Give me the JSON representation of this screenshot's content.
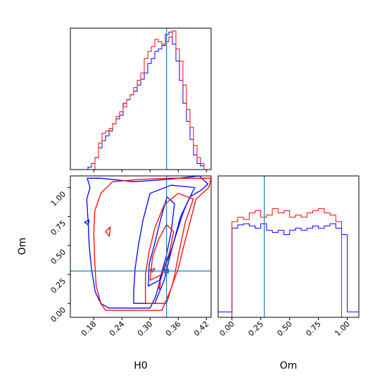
{
  "chart_data": {
    "type": "corner",
    "colors": {
      "blue": "#0000ff",
      "red": "#ff0000",
      "truth": "#1f77b4"
    },
    "truths": {
      "H0": 0.335,
      "Om": 0.28
    },
    "params": [
      {
        "name": "H0",
        "label": "H0",
        "range": [
          0.13,
          0.43
        ],
        "ticks": [
          "0.18",
          "0.24",
          "0.30",
          "0.36",
          "0.42"
        ]
      },
      {
        "name": "Om",
        "label": "Om",
        "range": [
          -0.12,
          1.1
        ],
        "ticks": [
          "0.00",
          "0.25",
          "0.50",
          "0.75",
          "1.00"
        ]
      }
    ],
    "histograms": [
      {
        "param": "H0",
        "x_edges": [
          0.13,
          0.1375,
          0.145,
          0.1525,
          0.16,
          0.1675,
          0.175,
          0.1825,
          0.19,
          0.1975,
          0.205,
          0.2125,
          0.22,
          0.2275,
          0.235,
          0.2425,
          0.25,
          0.2575,
          0.265,
          0.2725,
          0.28,
          0.2875,
          0.295,
          0.3025,
          0.31,
          0.3175,
          0.325,
          0.3325,
          0.34,
          0.3475,
          0.355,
          0.3625,
          0.37,
          0.3775,
          0.385,
          0.3925,
          0.4,
          0.4075,
          0.415,
          0.4225,
          0.43
        ],
        "series": [
          {
            "name": "blue",
            "values": [
              0,
              0,
              0,
              0,
              0,
              2,
              5,
              10,
              18,
              24,
              28,
              32,
              38,
              42,
              45,
              55,
              58,
              62,
              65,
              70,
              75,
              80,
              88,
              92,
              98,
              100,
              103,
              112,
              114,
              104,
              90,
              74,
              55,
              40,
              25,
              12,
              5,
              3,
              0,
              0
            ]
          },
          {
            "name": "red",
            "values": [
              0,
              0,
              0,
              0,
              0,
              0,
              0,
              10,
              22,
              30,
              32,
              34,
              38,
              44,
              48,
              52,
              58,
              62,
              68,
              74,
              80,
              92,
              98,
              102,
              108,
              106,
              104,
              106,
              110,
              115,
              100,
              90,
              70,
              50,
              35,
              20,
              10,
              5,
              0,
              0
            ]
          }
        ]
      },
      {
        "param": "Om",
        "x_edges": [
          -0.12,
          -0.05,
          0.0,
          0.05,
          0.1,
          0.15,
          0.2,
          0.25,
          0.3,
          0.35,
          0.4,
          0.45,
          0.5,
          0.55,
          0.6,
          0.65,
          0.7,
          0.75,
          0.8,
          0.85,
          0.9,
          0.95,
          1.0,
          1.1
        ],
        "series": [
          {
            "name": "blue",
            "values": [
              5,
              5,
              82,
              85,
              86,
              84,
              82,
              86,
              80,
              78,
              80,
              76,
              80,
              82,
              80,
              82,
              84,
              82,
              84,
              86,
              82,
              76,
              5
            ]
          },
          {
            "name": "red",
            "values": [
              0,
              0,
              88,
              92,
              90,
              96,
              98,
              92,
              94,
              100,
              96,
              98,
              92,
              94,
              92,
              96,
              98,
              100,
              96,
              94,
              88,
              0,
              0
            ]
          }
        ]
      }
    ],
    "contours": {
      "x_param": "H0",
      "y_param": "Om",
      "blue": [
        [
          [
            0.212,
            -0.04
          ],
          [
            0.3,
            -0.04
          ],
          [
            0.312,
            0.06
          ],
          [
            0.32,
            0.18
          ],
          [
            0.33,
            0.3
          ],
          [
            0.342,
            0.42
          ],
          [
            0.352,
            0.55
          ],
          [
            0.362,
            0.68
          ],
          [
            0.372,
            0.8
          ],
          [
            0.385,
            0.92
          ],
          [
            0.41,
            0.98
          ],
          [
            0.423,
            1.03
          ],
          [
            0.405,
            1.1
          ],
          [
            0.34,
            1.07
          ],
          [
            0.265,
            1.05
          ],
          [
            0.195,
            1.08
          ],
          [
            0.166,
            1.08
          ],
          [
            0.172,
            1.0
          ],
          [
            0.165,
            0.9
          ],
          [
            0.168,
            0.7
          ],
          [
            0.17,
            0.5
          ],
          [
            0.175,
            0.3
          ],
          [
            0.183,
            0.1
          ],
          [
            0.195,
            0.0
          ],
          [
            0.212,
            -0.04
          ]
        ],
        [
          [
            0.265,
            0.0
          ],
          [
            0.31,
            0.0
          ],
          [
            0.33,
            0.2
          ],
          [
            0.345,
            0.45
          ],
          [
            0.365,
            0.75
          ],
          [
            0.395,
            1.0
          ],
          [
            0.345,
            1.02
          ],
          [
            0.3,
            0.95
          ],
          [
            0.285,
            0.72
          ],
          [
            0.275,
            0.5
          ],
          [
            0.268,
            0.3
          ],
          [
            0.265,
            0.1
          ],
          [
            0.265,
            0.0
          ]
        ],
        [
          [
            0.296,
            0.15
          ],
          [
            0.32,
            0.2
          ],
          [
            0.334,
            0.4
          ],
          [
            0.345,
            0.62
          ],
          [
            0.352,
            0.86
          ],
          [
            0.336,
            0.92
          ],
          [
            0.322,
            0.72
          ],
          [
            0.31,
            0.52
          ],
          [
            0.298,
            0.34
          ],
          [
            0.296,
            0.15
          ]
        ],
        [
          [
            0.16,
            0.7
          ],
          [
            0.17,
            0.72
          ],
          [
            0.168,
            0.68
          ],
          [
            0.16,
            0.7
          ]
        ]
      ],
      "red": [
        [
          [
            0.205,
            -0.06
          ],
          [
            0.325,
            -0.06
          ],
          [
            0.342,
            0.1
          ],
          [
            0.36,
            0.3
          ],
          [
            0.372,
            0.5
          ],
          [
            0.385,
            0.7
          ],
          [
            0.398,
            0.9
          ],
          [
            0.425,
            1.0
          ],
          [
            0.43,
            1.08
          ],
          [
            0.34,
            1.08
          ],
          [
            0.28,
            1.07
          ],
          [
            0.22,
            1.05
          ],
          [
            0.195,
            0.95
          ],
          [
            0.182,
            0.8
          ],
          [
            0.18,
            0.6
          ],
          [
            0.182,
            0.35
          ],
          [
            0.185,
            0.15
          ],
          [
            0.195,
            0.0
          ],
          [
            0.205,
            -0.06
          ]
        ],
        [
          [
            0.29,
            0.0
          ],
          [
            0.335,
            0.0
          ],
          [
            0.35,
            0.2
          ],
          [
            0.362,
            0.45
          ],
          [
            0.375,
            0.7
          ],
          [
            0.392,
            0.9
          ],
          [
            0.36,
            0.95
          ],
          [
            0.33,
            0.85
          ],
          [
            0.31,
            0.65
          ],
          [
            0.298,
            0.45
          ],
          [
            0.29,
            0.25
          ],
          [
            0.29,
            0.0
          ]
        ],
        [
          [
            0.3,
            0.2
          ],
          [
            0.325,
            0.25
          ],
          [
            0.342,
            0.45
          ],
          [
            0.35,
            0.62
          ],
          [
            0.335,
            0.68
          ],
          [
            0.318,
            0.55
          ],
          [
            0.305,
            0.4
          ],
          [
            0.3,
            0.2
          ]
        ],
        [
          [
            0.205,
            0.62
          ],
          [
            0.215,
            0.66
          ],
          [
            0.213,
            0.58
          ],
          [
            0.205,
            0.62
          ]
        ],
        [
          [
            0.3,
            0.29
          ],
          [
            0.31,
            0.3
          ],
          [
            0.305,
            0.27
          ],
          [
            0.3,
            0.29
          ]
        ],
        [
          [
            0.318,
            0.15
          ],
          [
            0.322,
            0.18
          ],
          [
            0.32,
            0.12
          ],
          [
            0.318,
            0.15
          ]
        ]
      ]
    },
    "xlabel_bottom_left": "H0",
    "ylabel_bottom_left": "Om",
    "xlabel_bottom_right": "Om"
  }
}
